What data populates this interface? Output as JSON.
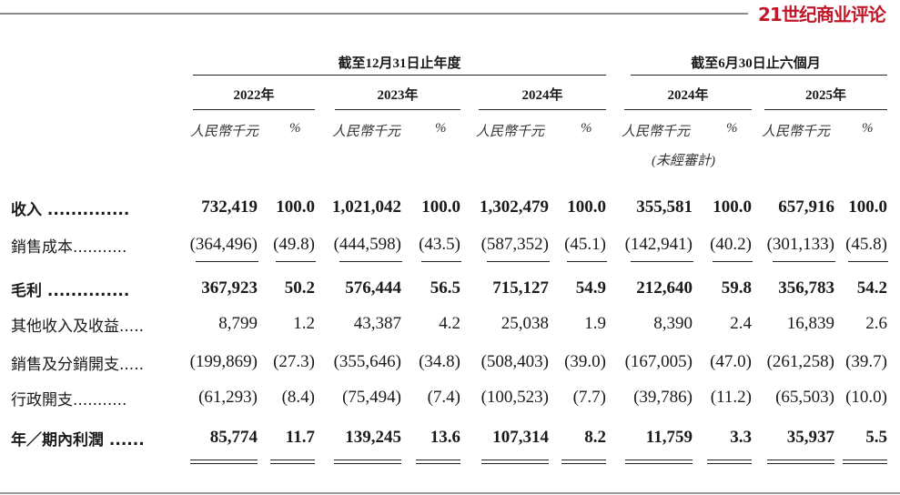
{
  "logo": "21世纪商业评论",
  "groups": [
    "截至12月31日止年度",
    "截至6月30日止六個月"
  ],
  "years": [
    "2022年",
    "2023年",
    "2024年",
    "2024年",
    "2025年"
  ],
  "unit_label": "人民幣千元",
  "pct_label": "%",
  "unaudited_label": "(未經審計)",
  "rows": [
    {
      "label": "收入 ..............",
      "bold": true,
      "values": [
        "732,419",
        "100.0",
        "1,021,042",
        "100.0",
        "1,302,479",
        "100.0",
        "355,581",
        "100.0",
        "657,916",
        "100.0"
      ]
    },
    {
      "label": "銷售成本...........",
      "bold": false,
      "values": [
        "(364,496)",
        "(49.8)",
        "(444,598)",
        "(43.5)",
        "(587,352)",
        "(45.1)",
        "(142,941)",
        "(40.2)",
        "(301,133)",
        "(45.8)"
      ]
    },
    {
      "label": "毛利 ..............",
      "bold": true,
      "values": [
        "367,923",
        "50.2",
        "576,444",
        "56.5",
        "715,127",
        "54.9",
        "212,640",
        "59.8",
        "356,783",
        "54.2"
      ]
    },
    {
      "label": "其他收入及收益.....",
      "bold": false,
      "values": [
        "8,799",
        "1.2",
        "43,387",
        "4.2",
        "25,038",
        "1.9",
        "8,390",
        "2.4",
        "16,839",
        "2.6"
      ]
    },
    {
      "label": "銷售及分銷開支.....",
      "bold": false,
      "values": [
        "(199,869)",
        "(27.3)",
        "(355,646)",
        "(34.8)",
        "(508,403)",
        "(39.0)",
        "(167,005)",
        "(47.0)",
        "(261,258)",
        "(39.7)"
      ]
    },
    {
      "label": "行政開支...........",
      "bold": false,
      "values": [
        "(61,293)",
        "(8.4)",
        "(75,494)",
        "(7.4)",
        "(100,523)",
        "(7.7)",
        "(39,786)",
        "(11.2)",
        "(65,503)",
        "(10.0)"
      ]
    },
    {
      "label": "年／期內利潤 ......",
      "bold": true,
      "values": [
        "85,774",
        "11.7",
        "139,245",
        "13.6",
        "107,314",
        "8.2",
        "11,759",
        "3.3",
        "35,937",
        "5.5"
      ]
    }
  ]
}
